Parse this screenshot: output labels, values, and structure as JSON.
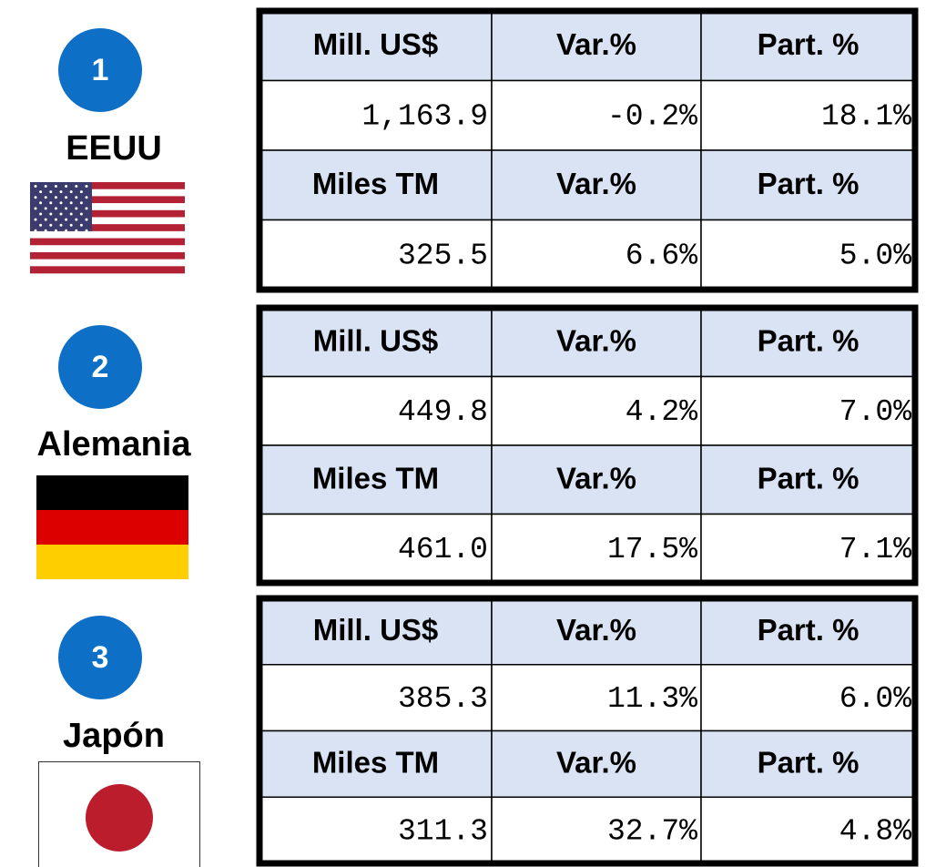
{
  "countries": [
    {
      "rank": "1",
      "name": "EEUU",
      "rows": [
        [
          "Mill. US$",
          "Var.%",
          "Part. %"
        ],
        [
          "1,163.9",
          "-0.2%",
          "18.1%"
        ],
        [
          "Miles TM",
          "Var.%",
          "Part. %"
        ],
        [
          "325.5",
          "6.6%",
          "5.0%"
        ]
      ]
    },
    {
      "rank": "2",
      "name": "Alemania",
      "rows": [
        [
          "Mill. US$",
          "Var.%",
          "Part. %"
        ],
        [
          "449.8",
          "4.2%",
          "7.0%"
        ],
        [
          "Miles TM",
          "Var.%",
          "Part. %"
        ],
        [
          "461.0",
          "17.5%",
          "7.1%"
        ]
      ]
    },
    {
      "rank": "3",
      "name": "Japón",
      "rows": [
        [
          "Mill. US$",
          "Var.%",
          "Part. %"
        ],
        [
          "385.3",
          "11.3%",
          "6.0%"
        ],
        [
          "Miles TM",
          "Var.%",
          "Part. %"
        ],
        [
          "311.3",
          "32.7%",
          "4.8%"
        ]
      ]
    }
  ]
}
